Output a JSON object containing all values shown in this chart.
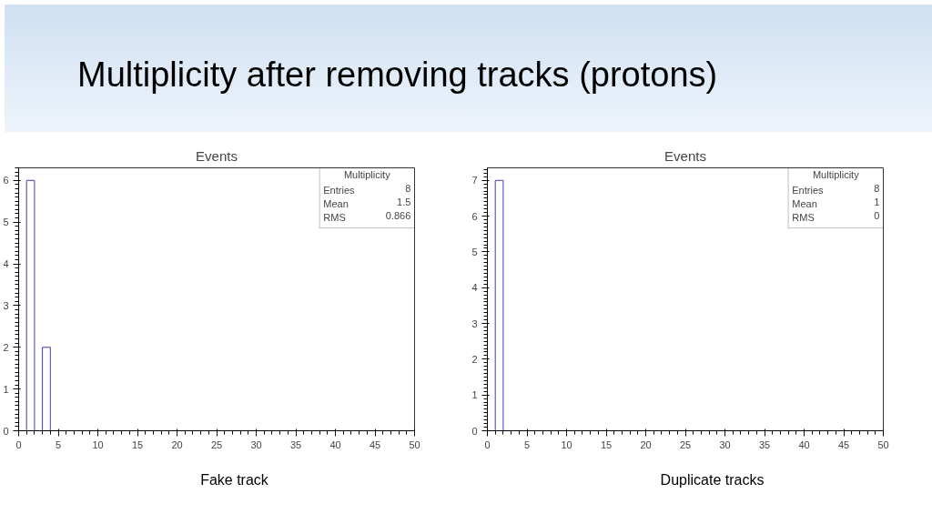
{
  "chart_data": [
    {
      "type": "histogram",
      "title": "Events",
      "color": "#3c3cb4",
      "bins": [
        0,
        1,
        2,
        3,
        4,
        5,
        6,
        7,
        8,
        9,
        10,
        11,
        12,
        13,
        14,
        15,
        16,
        17,
        18,
        19,
        20,
        21,
        22,
        23,
        24,
        25,
        26,
        27,
        28,
        29,
        30,
        31,
        32,
        33,
        34,
        35,
        36,
        37,
        38,
        39,
        40,
        41,
        42,
        43,
        44,
        45,
        46,
        47,
        48,
        49,
        50
      ],
      "values": [
        0,
        6,
        0,
        2,
        0,
        0,
        0,
        0,
        0,
        0,
        0,
        0,
        0,
        0,
        0,
        0,
        0,
        0,
        0,
        0,
        0,
        0,
        0,
        0,
        0,
        0,
        0,
        0,
        0,
        0,
        0,
        0,
        0,
        0,
        0,
        0,
        0,
        0,
        0,
        0,
        0,
        0,
        0,
        0,
        0,
        0,
        0,
        0,
        0,
        0
      ],
      "xlim": [
        0,
        50
      ],
      "xticks": [
        0,
        5,
        10,
        15,
        20,
        25,
        30,
        35,
        40,
        45,
        50
      ],
      "ylim": [
        0,
        6.3
      ],
      "yticks": [
        0,
        1,
        2,
        3,
        4,
        5,
        6
      ],
      "grid": false,
      "annotations": [
        "Fake track",
        "Multiplicity",
        "Entries",
        "8",
        "Mean",
        "1.5",
        "RMS",
        "0.866",
        "Multiplicity after removing tracks (protons)"
      ]
    },
    {
      "type": "histogram",
      "title": "Events",
      "color": "#3c3cb4",
      "bins": [
        0,
        1,
        2,
        3,
        4,
        5,
        6,
        7,
        8,
        9,
        10,
        11,
        12,
        13,
        14,
        15,
        16,
        17,
        18,
        19,
        20,
        21,
        22,
        23,
        24,
        25,
        26,
        27,
        28,
        29,
        30,
        31,
        32,
        33,
        34,
        35,
        36,
        37,
        38,
        39,
        40,
        41,
        42,
        43,
        44,
        45,
        46,
        47,
        48,
        49,
        50
      ],
      "values": [
        0,
        7,
        0,
        0,
        0,
        0,
        0,
        0,
        0,
        0,
        0,
        0,
        0,
        0,
        0,
        0,
        0,
        0,
        0,
        0,
        0,
        0,
        0,
        0,
        0,
        0,
        0,
        0,
        0,
        0,
        0,
        0,
        0,
        0,
        0,
        0,
        0,
        0,
        0,
        0,
        0,
        0,
        0,
        0,
        0,
        0,
        0,
        0,
        0,
        0
      ],
      "xlim": [
        0,
        50
      ],
      "xticks": [
        0,
        5,
        10,
        15,
        20,
        25,
        30,
        35,
        40,
        45,
        50
      ],
      "ylim": [
        0,
        7.35
      ],
      "yticks": [
        0,
        1,
        2,
        3,
        4,
        5,
        6,
        7
      ],
      "grid": false,
      "annotations": [
        "Duplicate tracks",
        "Multiplicity",
        "Entries",
        "8",
        "Mean",
        "1",
        "RMS",
        "0"
      ]
    }
  ]
}
